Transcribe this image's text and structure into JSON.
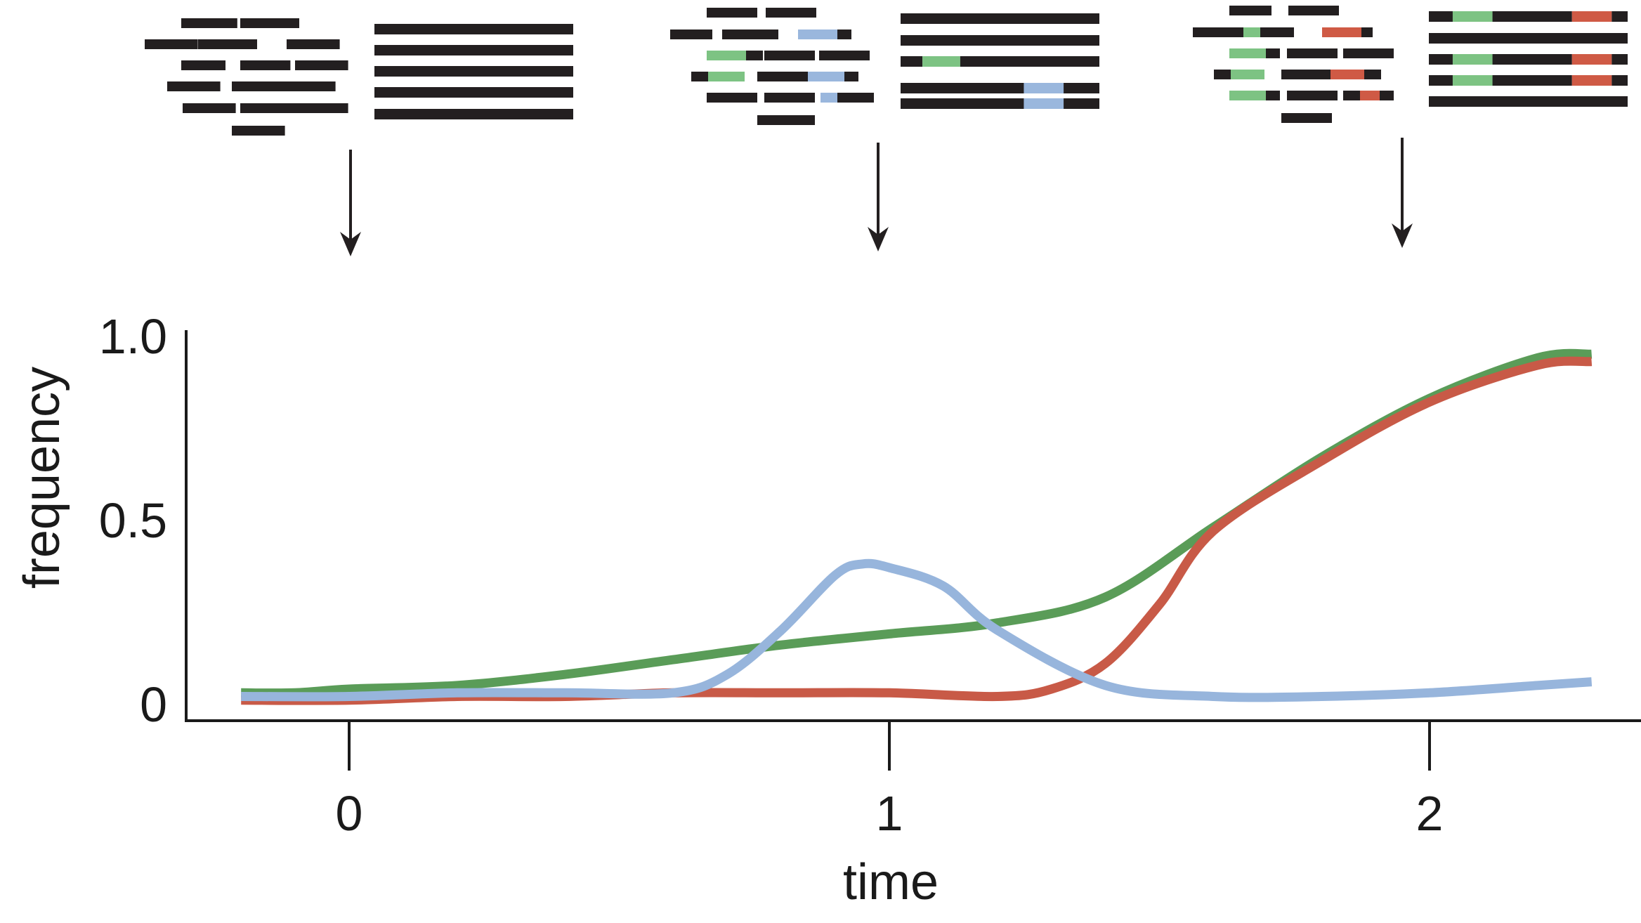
{
  "chart_data": {
    "type": "line",
    "title": "",
    "xlabel": "time",
    "ylabel": "frequency",
    "xlim": [
      -0.3,
      2.4
    ],
    "ylim": [
      0,
      1.0
    ],
    "x_ticks": [
      {
        "value": 0,
        "label": "0"
      },
      {
        "value": 1,
        "label": "1"
      },
      {
        "value": 2,
        "label": "2"
      }
    ],
    "y_ticks": [
      {
        "value": 0,
        "label": "0"
      },
      {
        "value": 0.5,
        "label": "0.5"
      },
      {
        "value": 1.0,
        "label": "1.0"
      }
    ],
    "grid": false,
    "legend": "none",
    "series": [
      {
        "color": "#5a9c58",
        "x": [
          -0.2,
          -0.1,
          0.0,
          0.2,
          0.4,
          0.6,
          0.8,
          1.0,
          1.2,
          1.4,
          1.6,
          1.8,
          2.0,
          2.2,
          2.3
        ],
        "y": [
          0.03,
          0.03,
          0.04,
          0.05,
          0.08,
          0.12,
          0.16,
          0.19,
          0.22,
          0.29,
          0.48,
          0.67,
          0.83,
          0.94,
          0.95
        ]
      },
      {
        "color": "#c85a47",
        "x": [
          -0.2,
          0.0,
          0.2,
          0.4,
          0.6,
          0.8,
          1.0,
          1.2,
          1.3,
          1.4,
          1.5,
          1.6,
          1.8,
          2.0,
          2.2,
          2.3
        ],
        "y": [
          0.01,
          0.01,
          0.02,
          0.02,
          0.03,
          0.03,
          0.03,
          0.02,
          0.04,
          0.11,
          0.27,
          0.47,
          0.66,
          0.82,
          0.92,
          0.93
        ]
      },
      {
        "color": "#97b5dc",
        "x": [
          -0.2,
          0.0,
          0.2,
          0.4,
          0.6,
          0.7,
          0.8,
          0.9,
          0.95,
          1.0,
          1.1,
          1.2,
          1.4,
          1.6,
          1.8,
          2.0,
          2.2,
          2.3
        ],
        "y": [
          0.02,
          0.02,
          0.03,
          0.03,
          0.03,
          0.08,
          0.2,
          0.35,
          0.38,
          0.37,
          0.32,
          0.2,
          0.05,
          0.02,
          0.02,
          0.03,
          0.05,
          0.06
        ]
      }
    ]
  },
  "genome_panels": [
    {
      "scattered_reads": [
        {
          "row": 0,
          "segs": [
            {
              "len": 38,
              "c": "k"
            }
          ]
        },
        {
          "row": 0,
          "segs": [
            {
              "len": 40,
              "c": "k"
            }
          ]
        },
        {
          "row": 1,
          "segs": [
            {
              "len": 36,
              "c": "k"
            }
          ]
        },
        {
          "row": 1,
          "segs": [
            {
              "len": 40,
              "c": "k"
            }
          ]
        },
        {
          "row": 1,
          "segs": [
            {
              "len": 36,
              "c": "k"
            }
          ]
        },
        {
          "row": 2,
          "segs": [
            {
              "len": 30,
              "c": "k"
            }
          ]
        },
        {
          "row": 2,
          "segs": [
            {
              "len": 34,
              "c": "k"
            }
          ]
        },
        {
          "row": 2,
          "segs": [
            {
              "len": 36,
              "c": "k"
            }
          ]
        },
        {
          "row": 3,
          "segs": [
            {
              "len": 36,
              "c": "k"
            }
          ]
        },
        {
          "row": 3,
          "segs": [
            {
              "len": 36,
              "c": "k"
            }
          ]
        },
        {
          "row": 3,
          "segs": [
            {
              "len": 36,
              "c": "k"
            }
          ]
        },
        {
          "row": 4,
          "segs": [
            {
              "len": 36,
              "c": "k"
            }
          ]
        },
        {
          "row": 4,
          "segs": [
            {
              "len": 38,
              "c": "k"
            }
          ]
        },
        {
          "row": 4,
          "segs": [
            {
              "len": 36,
              "c": "k"
            }
          ]
        },
        {
          "row": 5,
          "segs": [
            {
              "len": 36,
              "c": "k"
            }
          ]
        }
      ],
      "assembled": [
        [
          {
            "len": 1,
            "c": "k"
          }
        ],
        [
          {
            "len": 1,
            "c": "k"
          }
        ],
        [
          {
            "len": 1,
            "c": "k"
          }
        ],
        [
          {
            "len": 1,
            "c": "k"
          }
        ],
        [
          {
            "len": 1,
            "c": "k"
          }
        ]
      ]
    },
    {
      "scattered_reads": [
        {
          "row": 0,
          "segs": [
            {
              "len": 36,
              "c": "k"
            }
          ]
        },
        {
          "row": 0,
          "segs": [
            {
              "len": 36,
              "c": "k"
            }
          ]
        },
        {
          "row": 1,
          "segs": [
            {
              "len": 30,
              "c": "k"
            }
          ]
        },
        {
          "row": 1,
          "segs": [
            {
              "len": 40,
              "c": "k"
            }
          ]
        },
        {
          "row": 1,
          "segs": [
            {
              "len": 28,
              "c": "b"
            },
            {
              "len": 10,
              "c": "k"
            }
          ]
        },
        {
          "row": 2,
          "segs": [
            {
              "len": 28,
              "c": "g"
            },
            {
              "len": 12,
              "c": "k"
            }
          ]
        },
        {
          "row": 2,
          "segs": [
            {
              "len": 36,
              "c": "k"
            }
          ]
        },
        {
          "row": 2,
          "segs": [
            {
              "len": 36,
              "c": "k"
            }
          ]
        },
        {
          "row": 3,
          "segs": [
            {
              "len": 12,
              "c": "k"
            },
            {
              "len": 26,
              "c": "g"
            }
          ]
        },
        {
          "row": 3,
          "segs": [
            {
              "len": 36,
              "c": "k"
            }
          ]
        },
        {
          "row": 3,
          "segs": [
            {
              "len": 26,
              "c": "b"
            },
            {
              "len": 10,
              "c": "k"
            }
          ]
        },
        {
          "row": 4,
          "segs": [
            {
              "len": 36,
              "c": "k"
            }
          ]
        },
        {
          "row": 4,
          "segs": [
            {
              "len": 36,
              "c": "k"
            }
          ]
        },
        {
          "row": 4,
          "segs": [
            {
              "len": 12,
              "c": "b"
            },
            {
              "len": 26,
              "c": "k"
            }
          ]
        },
        {
          "row": 5,
          "segs": [
            {
              "len": 36,
              "c": "k"
            }
          ]
        },
        {
          "row": 5,
          "segs": [
            {
              "len": 36,
              "c": "k"
            }
          ]
        }
      ],
      "assembled": [
        [
          {
            "len": 1,
            "c": "k"
          }
        ],
        [
          {
            "len": 1,
            "c": "k"
          }
        ],
        [
          {
            "len": 0.11,
            "c": "k"
          },
          {
            "len": 0.19,
            "c": "g"
          },
          {
            "len": 0.7,
            "c": "k"
          }
        ],
        [
          {
            "len": 0.62,
            "c": "k"
          },
          {
            "len": 0.2,
            "c": "b"
          },
          {
            "len": 0.18,
            "c": "k"
          }
        ],
        [
          {
            "len": 0.62,
            "c": "k"
          },
          {
            "len": 0.2,
            "c": "b"
          },
          {
            "len": 0.18,
            "c": "k"
          }
        ]
      ]
    },
    {
      "scattered_reads": [
        {
          "row": 0,
          "segs": [
            {
              "len": 30,
              "c": "k"
            }
          ]
        },
        {
          "row": 0,
          "segs": [
            {
              "len": 36,
              "c": "k"
            }
          ]
        },
        {
          "row": 1,
          "segs": [
            {
              "len": 36,
              "c": "k"
            }
          ]
        },
        {
          "row": 1,
          "segs": [
            {
              "len": 12,
              "c": "g"
            },
            {
              "len": 24,
              "c": "k"
            }
          ]
        },
        {
          "row": 1,
          "segs": [
            {
              "len": 28,
              "c": "r"
            },
            {
              "len": 8,
              "c": "k"
            }
          ]
        },
        {
          "row": 2,
          "segs": [
            {
              "len": 26,
              "c": "g"
            },
            {
              "len": 10,
              "c": "k"
            }
          ]
        },
        {
          "row": 2,
          "segs": [
            {
              "len": 36,
              "c": "k"
            }
          ]
        },
        {
          "row": 2,
          "segs": [
            {
              "len": 36,
              "c": "k"
            }
          ]
        },
        {
          "row": 3,
          "segs": [
            {
              "len": 12,
              "c": "k"
            },
            {
              "len": 24,
              "c": "g"
            }
          ]
        },
        {
          "row": 3,
          "segs": [
            {
              "len": 36,
              "c": "k"
            }
          ]
        },
        {
          "row": 3,
          "segs": [
            {
              "len": 24,
              "c": "r"
            },
            {
              "len": 12,
              "c": "k"
            }
          ]
        },
        {
          "row": 4,
          "segs": [
            {
              "len": 26,
              "c": "g"
            },
            {
              "len": 10,
              "c": "k"
            }
          ]
        },
        {
          "row": 4,
          "segs": [
            {
              "len": 36,
              "c": "k"
            }
          ]
        },
        {
          "row": 4,
          "segs": [
            {
              "len": 12,
              "c": "k"
            },
            {
              "len": 14,
              "c": "r"
            },
            {
              "len": 10,
              "c": "k"
            }
          ]
        },
        {
          "row": 5,
          "segs": [
            {
              "len": 36,
              "c": "k"
            }
          ]
        }
      ],
      "assembled": [
        [
          {
            "len": 0.12,
            "c": "k"
          },
          {
            "len": 0.2,
            "c": "g"
          },
          {
            "len": 0.4,
            "c": "k"
          },
          {
            "len": 0.2,
            "c": "r"
          },
          {
            "len": 0.08,
            "c": "k"
          }
        ],
        [
          {
            "len": 1,
            "c": "k"
          }
        ],
        [
          {
            "len": 0.12,
            "c": "k"
          },
          {
            "len": 0.2,
            "c": "g"
          },
          {
            "len": 0.4,
            "c": "k"
          },
          {
            "len": 0.2,
            "c": "r"
          },
          {
            "len": 0.08,
            "c": "k"
          }
        ],
        [
          {
            "len": 0.12,
            "c": "k"
          },
          {
            "len": 0.2,
            "c": "g"
          },
          {
            "len": 0.4,
            "c": "k"
          },
          {
            "len": 0.2,
            "c": "r"
          },
          {
            "len": 0.08,
            "c": "k"
          }
        ],
        [
          {
            "len": 1,
            "c": "k"
          }
        ]
      ]
    }
  ],
  "colors": {
    "ink": "#231f20",
    "green": "#7dc383",
    "blue": "#9ab7dd",
    "red": "#cf5a45",
    "axis": "#1a1a1a"
  }
}
